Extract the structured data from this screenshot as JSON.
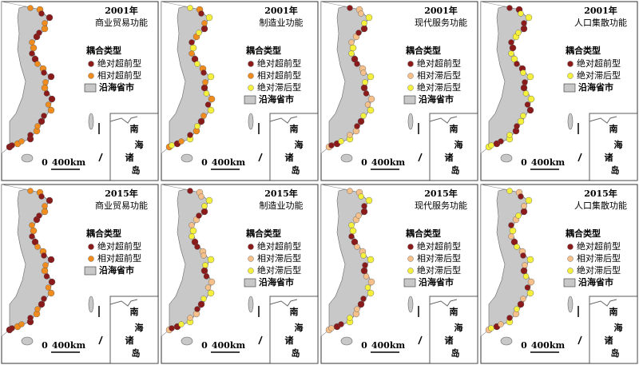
{
  "legend_title": "耦合类型",
  "region_label": "沿海省市",
  "scale": {
    "zero": "0",
    "distance": "400km"
  },
  "inset": [
    "南",
    "海",
    "诸",
    "岛"
  ],
  "panels": [
    {
      "year": "2001年",
      "function": "商业贸易功能",
      "legend": [
        {
          "label": "绝对超前型",
          "color": "#8b1a1a"
        },
        {
          "label": "相对超前型",
          "color": "#f08c1e"
        }
      ]
    },
    {
      "year": "2001年",
      "function": "制造业功能",
      "legend": [
        {
          "label": "绝对超前型",
          "color": "#8b1a1a"
        },
        {
          "label": "相对超前型",
          "color": "#f08c1e"
        },
        {
          "label": "绝对滞后型",
          "color": "#f5f03c"
        }
      ]
    },
    {
      "year": "2001年",
      "function": "现代服务功能",
      "legend": [
        {
          "label": "绝对超前型",
          "color": "#8b1a1a"
        },
        {
          "label": "相对滞后型",
          "color": "#f5c08a"
        },
        {
          "label": "绝对滞后型",
          "color": "#f5f03c"
        }
      ]
    },
    {
      "year": "2001年",
      "function": "人口集散功能",
      "legend": [
        {
          "label": "绝对超前型",
          "color": "#8b1a1a"
        },
        {
          "label": "绝对滞后型",
          "color": "#f5f03c"
        }
      ]
    },
    {
      "year": "2015年",
      "function": "商业贸易功能",
      "legend": [
        {
          "label": "绝对超前型",
          "color": "#8b1a1a"
        },
        {
          "label": "相对超前型",
          "color": "#f08c1e"
        }
      ]
    },
    {
      "year": "2015年",
      "function": "制造业功能",
      "legend": [
        {
          "label": "绝对超前型",
          "color": "#8b1a1a"
        },
        {
          "label": "相对滞后型",
          "color": "#f5c08a"
        },
        {
          "label": "绝对滞后型",
          "color": "#f5f03c"
        }
      ]
    },
    {
      "year": "2015年",
      "function": "现代服务功能",
      "legend": [
        {
          "label": "绝对超前型",
          "color": "#8b1a1a"
        },
        {
          "label": "相对滞后型",
          "color": "#f5c08a"
        },
        {
          "label": "绝对滞后型",
          "color": "#f5f03c"
        }
      ]
    },
    {
      "year": "2015年",
      "function": "人口集散功能",
      "legend": [
        {
          "label": "绝对超前型",
          "color": "#8b1a1a"
        },
        {
          "label": "相对滞后型",
          "color": "#f5c08a"
        },
        {
          "label": "绝对滞后型",
          "color": "#f5f03c"
        }
      ]
    }
  ]
}
